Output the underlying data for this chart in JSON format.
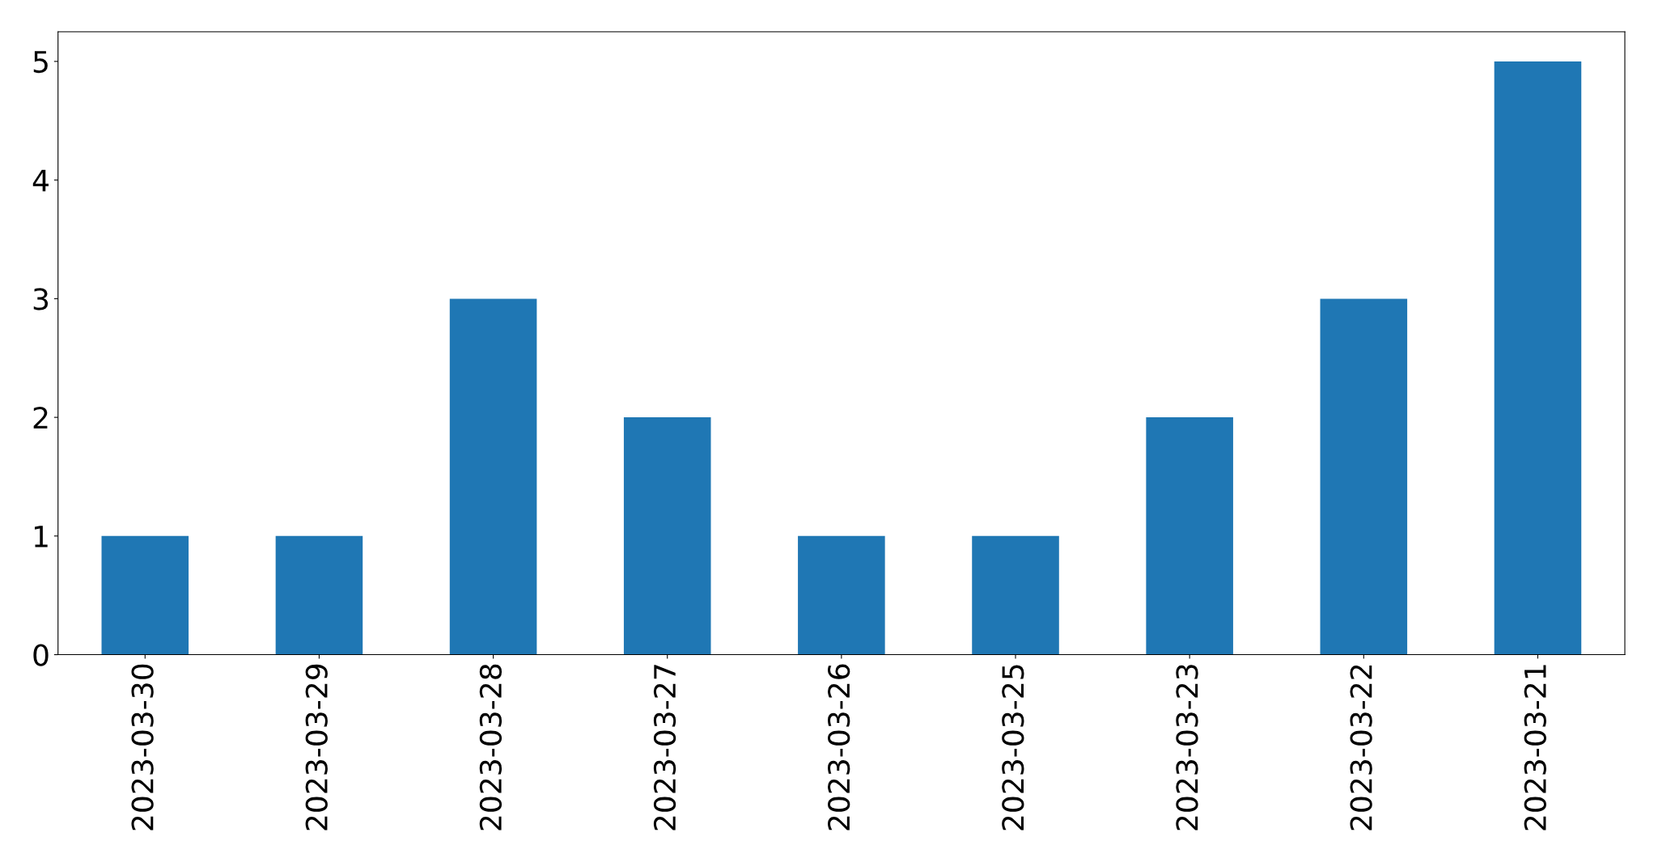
{
  "chart_data": {
    "type": "bar",
    "categories": [
      "2023-03-30",
      "2023-03-29",
      "2023-03-28",
      "2023-03-27",
      "2023-03-26",
      "2023-03-25",
      "2023-03-23",
      "2023-03-22",
      "2023-03-21"
    ],
    "values": [
      1,
      1,
      3,
      2,
      1,
      1,
      2,
      3,
      5
    ],
    "color": "#1f77b4",
    "ylim": [
      0,
      5.25
    ],
    "yticks": [
      0,
      1,
      2,
      3,
      4,
      5
    ],
    "grid": false
  }
}
